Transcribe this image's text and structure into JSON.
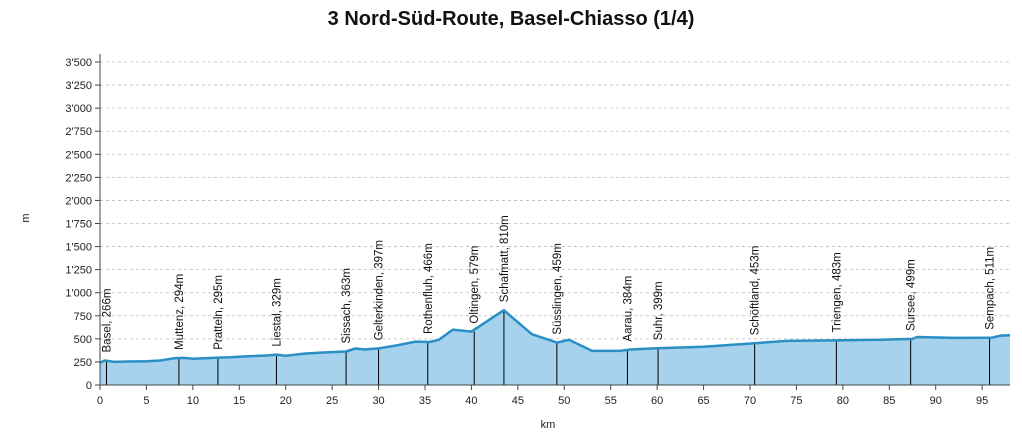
{
  "chart_data": {
    "type": "area",
    "title": "3 Nord-Süd-Route, Basel-Chiasso (1/4)",
    "xlabel": "km",
    "ylabel": "m",
    "xlim": [
      0,
      98
    ],
    "ylim": [
      0,
      3500
    ],
    "x_ticks": [
      {
        "value": 0,
        "label": "0"
      },
      {
        "value": 5,
        "label": "5"
      },
      {
        "value": 10,
        "label": "10"
      },
      {
        "value": 15,
        "label": "15"
      },
      {
        "value": 20,
        "label": "20"
      },
      {
        "value": 25,
        "label": "25"
      },
      {
        "value": 30,
        "label": "30"
      },
      {
        "value": 35,
        "label": "35"
      },
      {
        "value": 40,
        "label": "40"
      },
      {
        "value": 45,
        "label": "45"
      },
      {
        "value": 50,
        "label": "50"
      },
      {
        "value": 55,
        "label": "55"
      },
      {
        "value": 60,
        "label": "60"
      },
      {
        "value": 65,
        "label": "65"
      },
      {
        "value": 70,
        "label": "70"
      },
      {
        "value": 75,
        "label": "75"
      },
      {
        "value": 80,
        "label": "80"
      },
      {
        "value": 85,
        "label": "85"
      },
      {
        "value": 90,
        "label": "90"
      },
      {
        "value": 95,
        "label": "95"
      }
    ],
    "y_ticks": [
      {
        "value": 0,
        "label": "0"
      },
      {
        "value": 250,
        "label": "250"
      },
      {
        "value": 500,
        "label": "500"
      },
      {
        "value": 750,
        "label": "750"
      },
      {
        "value": 1000,
        "label": "1'000"
      },
      {
        "value": 1250,
        "label": "1'250"
      },
      {
        "value": 1500,
        "label": "1'500"
      },
      {
        "value": 1750,
        "label": "1'750"
      },
      {
        "value": 2000,
        "label": "2'000"
      },
      {
        "value": 2250,
        "label": "2'250"
      },
      {
        "value": 2500,
        "label": "2'500"
      },
      {
        "value": 2750,
        "label": "2'750"
      },
      {
        "value": 3000,
        "label": "3'000"
      },
      {
        "value": 3250,
        "label": "3'250"
      },
      {
        "value": 3500,
        "label": "3'500"
      }
    ],
    "grid": true,
    "colors": {
      "line": "#2a8fc4",
      "fill": "#a6d2ee",
      "grid": "#bbbbbb",
      "marker": "#000000"
    },
    "profile": {
      "x": [
        0,
        0.5,
        1.5,
        3,
        5,
        6.5,
        8,
        9,
        10,
        12.5,
        14,
        16,
        18,
        19,
        20,
        22,
        24,
        26.5,
        27.5,
        28.5,
        30,
        32,
        34,
        35.5,
        36.5,
        38,
        40,
        43.5,
        46.5,
        49.2,
        50.5,
        53,
        56,
        57,
        60,
        65,
        70.5,
        74,
        79,
        84,
        87.5,
        88,
        92,
        96,
        97,
        98
      ],
      "y": [
        240,
        266,
        250,
        255,
        258,
        265,
        290,
        294,
        285,
        295,
        300,
        312,
        320,
        329,
        318,
        340,
        352,
        363,
        395,
        385,
        397,
        430,
        470,
        466,
        490,
        600,
        579,
        810,
        550,
        459,
        490,
        370,
        370,
        384,
        399,
        415,
        453,
        478,
        483,
        490,
        499,
        520,
        510,
        511,
        535,
        540
      ]
    },
    "annotations": [
      {
        "x": 0.7,
        "y": 266,
        "label": "Basel, 266m"
      },
      {
        "x": 8.5,
        "y": 294,
        "label": "Muttenz, 294m"
      },
      {
        "x": 12.7,
        "y": 295,
        "label": "Pratteln, 295m"
      },
      {
        "x": 19,
        "y": 329,
        "label": "Liestal, 329m"
      },
      {
        "x": 26.5,
        "y": 363,
        "label": "Sissach, 363m"
      },
      {
        "x": 30,
        "y": 397,
        "label": "Gelterkinden, 397m"
      },
      {
        "x": 35.3,
        "y": 466,
        "label": "Rothenfluh, 466m"
      },
      {
        "x": 40.3,
        "y": 579,
        "label": "Oltingen, 579m"
      },
      {
        "x": 43.5,
        "y": 810,
        "label": "Schafmatt, 810m"
      },
      {
        "x": 49.2,
        "y": 459,
        "label": "Süsslingen, 459m"
      },
      {
        "x": 56.8,
        "y": 384,
        "label": "Aarau, 384m"
      },
      {
        "x": 60.1,
        "y": 399,
        "label": "Suhr, 399m"
      },
      {
        "x": 70.5,
        "y": 453,
        "label": "Schöftland, 453m"
      },
      {
        "x": 79.3,
        "y": 483,
        "label": "Triengen, 483m"
      },
      {
        "x": 87.3,
        "y": 499,
        "label": "Sursee, 499m"
      },
      {
        "x": 95.8,
        "y": 511,
        "label": "Sempach, 511m"
      }
    ]
  }
}
